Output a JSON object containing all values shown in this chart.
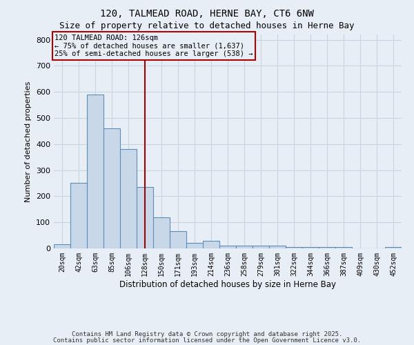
{
  "title1": "120, TALMEAD ROAD, HERNE BAY, CT6 6NW",
  "title2": "Size of property relative to detached houses in Herne Bay",
  "xlabel": "Distribution of detached houses by size in Herne Bay",
  "ylabel": "Number of detached properties",
  "bin_labels": [
    "20sqm",
    "42sqm",
    "63sqm",
    "85sqm",
    "106sqm",
    "128sqm",
    "150sqm",
    "171sqm",
    "193sqm",
    "214sqm",
    "236sqm",
    "258sqm",
    "279sqm",
    "301sqm",
    "322sqm",
    "344sqm",
    "366sqm",
    "387sqm",
    "409sqm",
    "430sqm",
    "452sqm"
  ],
  "bar_heights": [
    15,
    250,
    590,
    460,
    380,
    235,
    120,
    65,
    20,
    30,
    10,
    10,
    10,
    10,
    5,
    5,
    5,
    5,
    0,
    0,
    5
  ],
  "bar_color": "#c8d8e8",
  "bar_edge_color": "#5b8db8",
  "vline_bin_index": 5,
  "vline_color": "#990000",
  "annotation_text": "120 TALMEAD ROAD: 126sqm\n← 75% of detached houses are smaller (1,637)\n25% of semi-detached houses are larger (538) →",
  "annotation_box_color": "#aa0000",
  "ylim": [
    0,
    820
  ],
  "yticks": [
    0,
    100,
    200,
    300,
    400,
    500,
    600,
    700,
    800
  ],
  "grid_color": "#c8d4e0",
  "bg_color": "#e8eef5",
  "footer1": "Contains HM Land Registry data © Crown copyright and database right 2025.",
  "footer2": "Contains public sector information licensed under the Open Government Licence v3.0."
}
